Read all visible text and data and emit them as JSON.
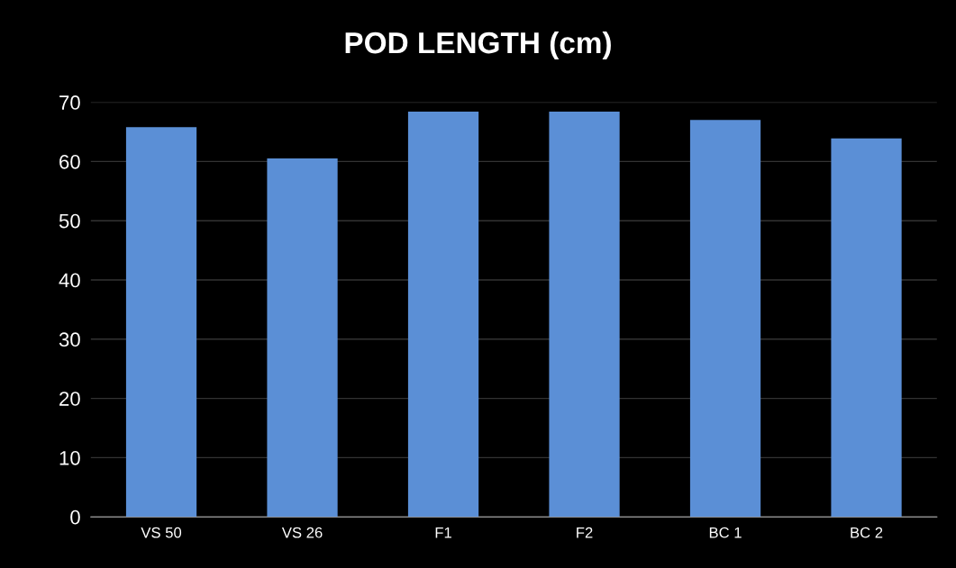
{
  "chart_data": {
    "type": "bar",
    "title": "POD LENGTH (cm)",
    "categories": [
      "VS 50",
      "VS 26",
      "F1",
      "F2",
      "BC 1",
      "BC 2"
    ],
    "values": [
      65.8,
      60.5,
      68.4,
      68.4,
      67,
      63.9
    ],
    "color": "#5b8fd6",
    "ylim": [
      0,
      70
    ],
    "yticks": [
      0,
      10,
      20,
      30,
      40,
      50,
      60,
      70
    ],
    "grid": "y"
  }
}
